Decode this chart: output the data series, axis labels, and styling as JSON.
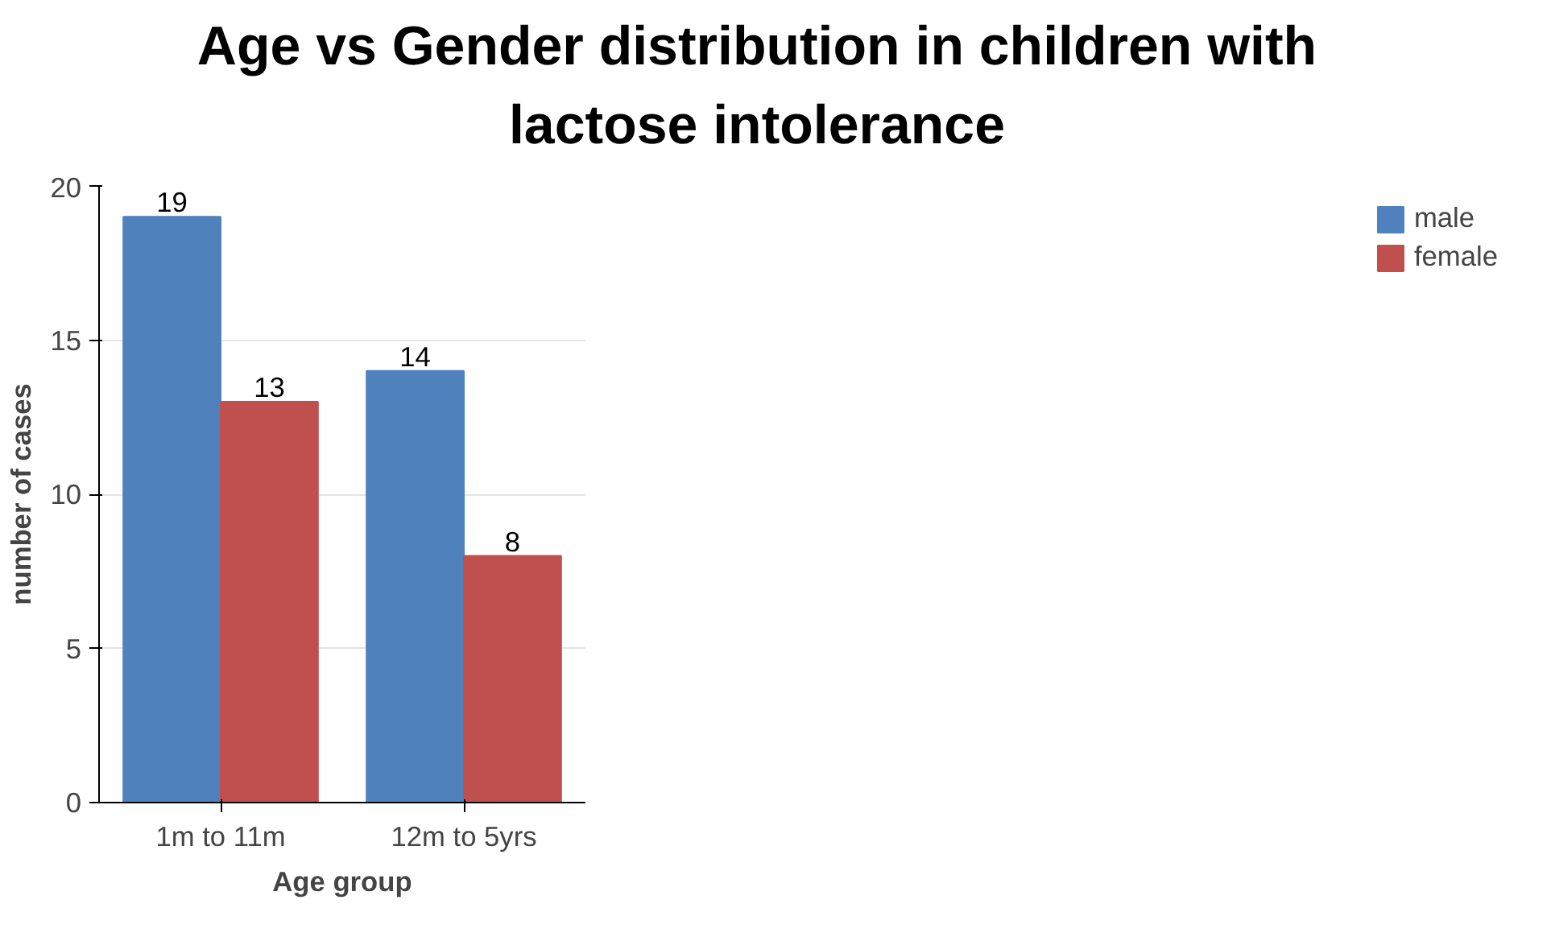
{
  "chart_data": {
    "type": "bar",
    "title": "Age vs Gender distribution in children with lactose intolerance",
    "xlabel": "Age group",
    "ylabel": "number of cases",
    "categories": [
      "1m to 11m",
      "12m to 5yrs"
    ],
    "series": [
      {
        "name": "male",
        "color": "#4f81bd",
        "values": [
          19,
          14
        ]
      },
      {
        "name": "female",
        "color": "#c0504d",
        "values": [
          13,
          8
        ]
      }
    ],
    "ylim": [
      0,
      20
    ],
    "yticks": [
      0,
      5,
      10,
      15,
      20
    ],
    "grid": "y",
    "legend": "right",
    "data_labels": true
  }
}
